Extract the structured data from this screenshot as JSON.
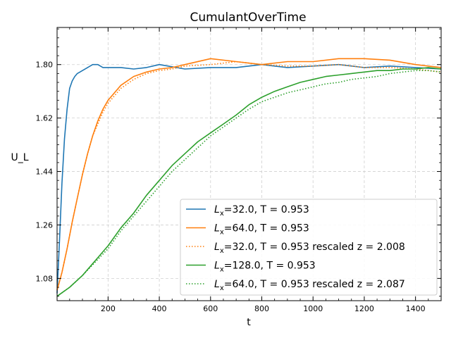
{
  "chart_data": {
    "type": "line",
    "title": "CumulantOverTime",
    "xlabel": "t",
    "ylabel": "U_L",
    "xlim": [
      1,
      1500
    ],
    "ylim": [
      1.005,
      1.925
    ],
    "xticks": [
      200,
      400,
      600,
      800,
      1000,
      1200,
      1400
    ],
    "yticks": [
      1.08,
      1.26,
      1.44,
      1.62,
      1.8
    ],
    "ytick_labels": [
      "1.08",
      "1.26",
      "1.44",
      "1.62",
      "1.80"
    ],
    "grid": true,
    "legend_position": "lower-right",
    "series": [
      {
        "name_html": "<tspan font-style='italic'>L</tspan><tspan dy='4' font-size='10'>x</tspan><tspan dy='-4'>=32.0,  T = 0.953</tspan>",
        "name": "L_x=32.0,  T = 0.953",
        "color": "#1f77b4",
        "style": "solid",
        "x": [
          1,
          10,
          20,
          30,
          40,
          50,
          60,
          70,
          80,
          90,
          100,
          120,
          140,
          160,
          180,
          200,
          250,
          300,
          350,
          400,
          500,
          600,
          700,
          800,
          900,
          1000,
          1100,
          1200,
          1300,
          1400,
          1500
        ],
        "y": [
          1.03,
          1.2,
          1.4,
          1.55,
          1.65,
          1.72,
          1.745,
          1.76,
          1.77,
          1.775,
          1.78,
          1.79,
          1.8,
          1.8,
          1.79,
          1.79,
          1.79,
          1.785,
          1.79,
          1.8,
          1.785,
          1.79,
          1.79,
          1.8,
          1.79,
          1.795,
          1.8,
          1.79,
          1.795,
          1.79,
          1.785
        ]
      },
      {
        "name_html": "<tspan font-style='italic'>L</tspan><tspan dy='4' font-size='10'>x</tspan><tspan dy='-4'>=64.0,  T = 0.953</tspan>",
        "name": "L_x=64.0,  T = 0.953",
        "color": "#ff7f0e",
        "style": "solid",
        "x": [
          1,
          20,
          40,
          60,
          80,
          100,
          120,
          140,
          160,
          180,
          200,
          250,
          300,
          350,
          400,
          450,
          500,
          600,
          700,
          800,
          900,
          1000,
          1100,
          1200,
          1300,
          1400,
          1500
        ],
        "y": [
          1.04,
          1.1,
          1.18,
          1.27,
          1.35,
          1.43,
          1.5,
          1.56,
          1.61,
          1.65,
          1.68,
          1.73,
          1.76,
          1.775,
          1.785,
          1.79,
          1.8,
          1.82,
          1.81,
          1.8,
          1.81,
          1.81,
          1.82,
          1.82,
          1.815,
          1.8,
          1.79
        ]
      },
      {
        "name_html": "<tspan font-style='italic'>L</tspan><tspan dy='4' font-size='10'>x</tspan><tspan dy='-4'>=32.0,  T = 0.953  rescaled z = 2.008</tspan>",
        "name": "L_x=32.0,  T = 0.953  rescaled z = 2.008",
        "color": "#ff7f0e",
        "style": "dotted",
        "x": [
          1,
          20,
          40,
          60,
          80,
          100,
          120,
          140,
          160,
          180,
          200,
          250,
          300,
          350,
          400,
          450,
          500,
          600,
          700,
          800,
          900,
          1000,
          1100,
          1200,
          1300,
          1400,
          1500
        ],
        "y": [
          1.04,
          1.1,
          1.18,
          1.27,
          1.35,
          1.43,
          1.5,
          1.56,
          1.6,
          1.64,
          1.67,
          1.72,
          1.75,
          1.77,
          1.78,
          1.785,
          1.795,
          1.8,
          1.81,
          1.8,
          1.795,
          1.795,
          1.8,
          1.79,
          1.79,
          1.785,
          1.775
        ]
      },
      {
        "name_html": "<tspan font-style='italic'>L</tspan><tspan dy='4' font-size='10'>x</tspan><tspan dy='-4'>=128.0,  T = 0.953</tspan>",
        "name": "L_x=128.0,  T = 0.953",
        "color": "#2ca02c",
        "style": "solid",
        "x": [
          1,
          50,
          100,
          150,
          200,
          250,
          300,
          350,
          400,
          450,
          500,
          550,
          600,
          650,
          700,
          750,
          800,
          850,
          900,
          950,
          1000,
          1050,
          1100,
          1150,
          1200,
          1250,
          1300,
          1350,
          1400,
          1450,
          1500
        ],
        "y": [
          1.02,
          1.05,
          1.09,
          1.14,
          1.19,
          1.25,
          1.3,
          1.36,
          1.41,
          1.46,
          1.5,
          1.54,
          1.57,
          1.6,
          1.63,
          1.665,
          1.69,
          1.71,
          1.725,
          1.74,
          1.75,
          1.76,
          1.765,
          1.77,
          1.775,
          1.78,
          1.78,
          1.785,
          1.785,
          1.79,
          1.785
        ]
      },
      {
        "name_html": "<tspan font-style='italic'>L</tspan><tspan dy='4' font-size='10'>x</tspan><tspan dy='-4'>=64.0,  T = 0.953  rescaled z = 2.087</tspan>",
        "name": "L_x=64.0,  T = 0.953  rescaled z = 2.087",
        "color": "#2ca02c",
        "style": "dotted",
        "x": [
          1,
          50,
          100,
          150,
          200,
          250,
          300,
          350,
          400,
          450,
          500,
          550,
          600,
          650,
          700,
          750,
          800,
          850,
          900,
          950,
          1000,
          1050,
          1100,
          1150,
          1200,
          1250,
          1300,
          1350,
          1400,
          1450,
          1500
        ],
        "y": [
          1.02,
          1.05,
          1.09,
          1.135,
          1.18,
          1.24,
          1.29,
          1.34,
          1.39,
          1.44,
          1.48,
          1.52,
          1.56,
          1.59,
          1.62,
          1.65,
          1.675,
          1.69,
          1.705,
          1.715,
          1.725,
          1.735,
          1.74,
          1.75,
          1.755,
          1.76,
          1.77,
          1.775,
          1.78,
          1.78,
          1.775
        ]
      }
    ]
  }
}
